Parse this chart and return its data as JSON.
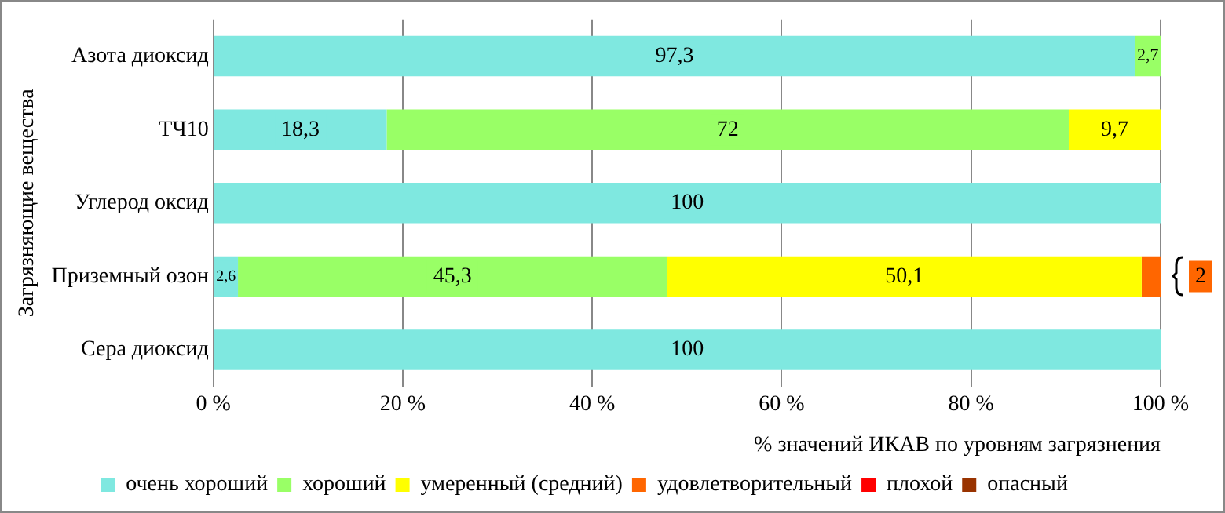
{
  "chart_data": {
    "type": "bar",
    "orientation": "horizontal",
    "stacked": true,
    "xlabel": "% значений ИКАВ по уровням загрязнения",
    "ylabel": "Загрязняющие вещества",
    "categories": [
      "Азота диоксид",
      "ТЧ10",
      "Углерод оксид",
      "Приземный озон",
      "Сера диоксид"
    ],
    "series": [
      {
        "name": "очень хороший",
        "color": "#7fe8e0",
        "values": [
          97.3,
          18.3,
          100,
          2.6,
          100
        ],
        "value_labels": [
          "97,3",
          "18,3",
          "100",
          "2,6",
          "100"
        ]
      },
      {
        "name": "хороший",
        "color": "#99ff66",
        "values": [
          2.7,
          72,
          null,
          45.3,
          null
        ],
        "value_labels": [
          "2,7",
          "72",
          null,
          "45,3",
          null
        ]
      },
      {
        "name": "умеренный (средний)",
        "color": "#ffff00",
        "values": [
          null,
          9.7,
          null,
          50.1,
          null
        ],
        "value_labels": [
          null,
          "9,7",
          null,
          "50,1",
          null
        ]
      },
      {
        "name": "удовлетворительный",
        "color": "#ff6600",
        "values": [
          null,
          null,
          null,
          2,
          null
        ],
        "value_labels": [
          null,
          null,
          null,
          "2",
          null
        ]
      },
      {
        "name": "плохой",
        "color": "#ff0000",
        "values": [
          null,
          null,
          null,
          null,
          null
        ]
      },
      {
        "name": "опасный",
        "color": "#993300",
        "values": [
          null,
          null,
          null,
          null,
          null
        ]
      }
    ],
    "xlim": [
      0,
      100
    ],
    "xticks": [
      {
        "value": 0,
        "label": "0 %"
      },
      {
        "value": 20,
        "label": "20 %"
      },
      {
        "value": 40,
        "label": "40 %"
      },
      {
        "value": 60,
        "label": "60 %"
      },
      {
        "value": 80,
        "label": "80 %"
      },
      {
        "value": 100,
        "label": "100 %"
      }
    ],
    "grid": "x",
    "legend": "bottom"
  }
}
